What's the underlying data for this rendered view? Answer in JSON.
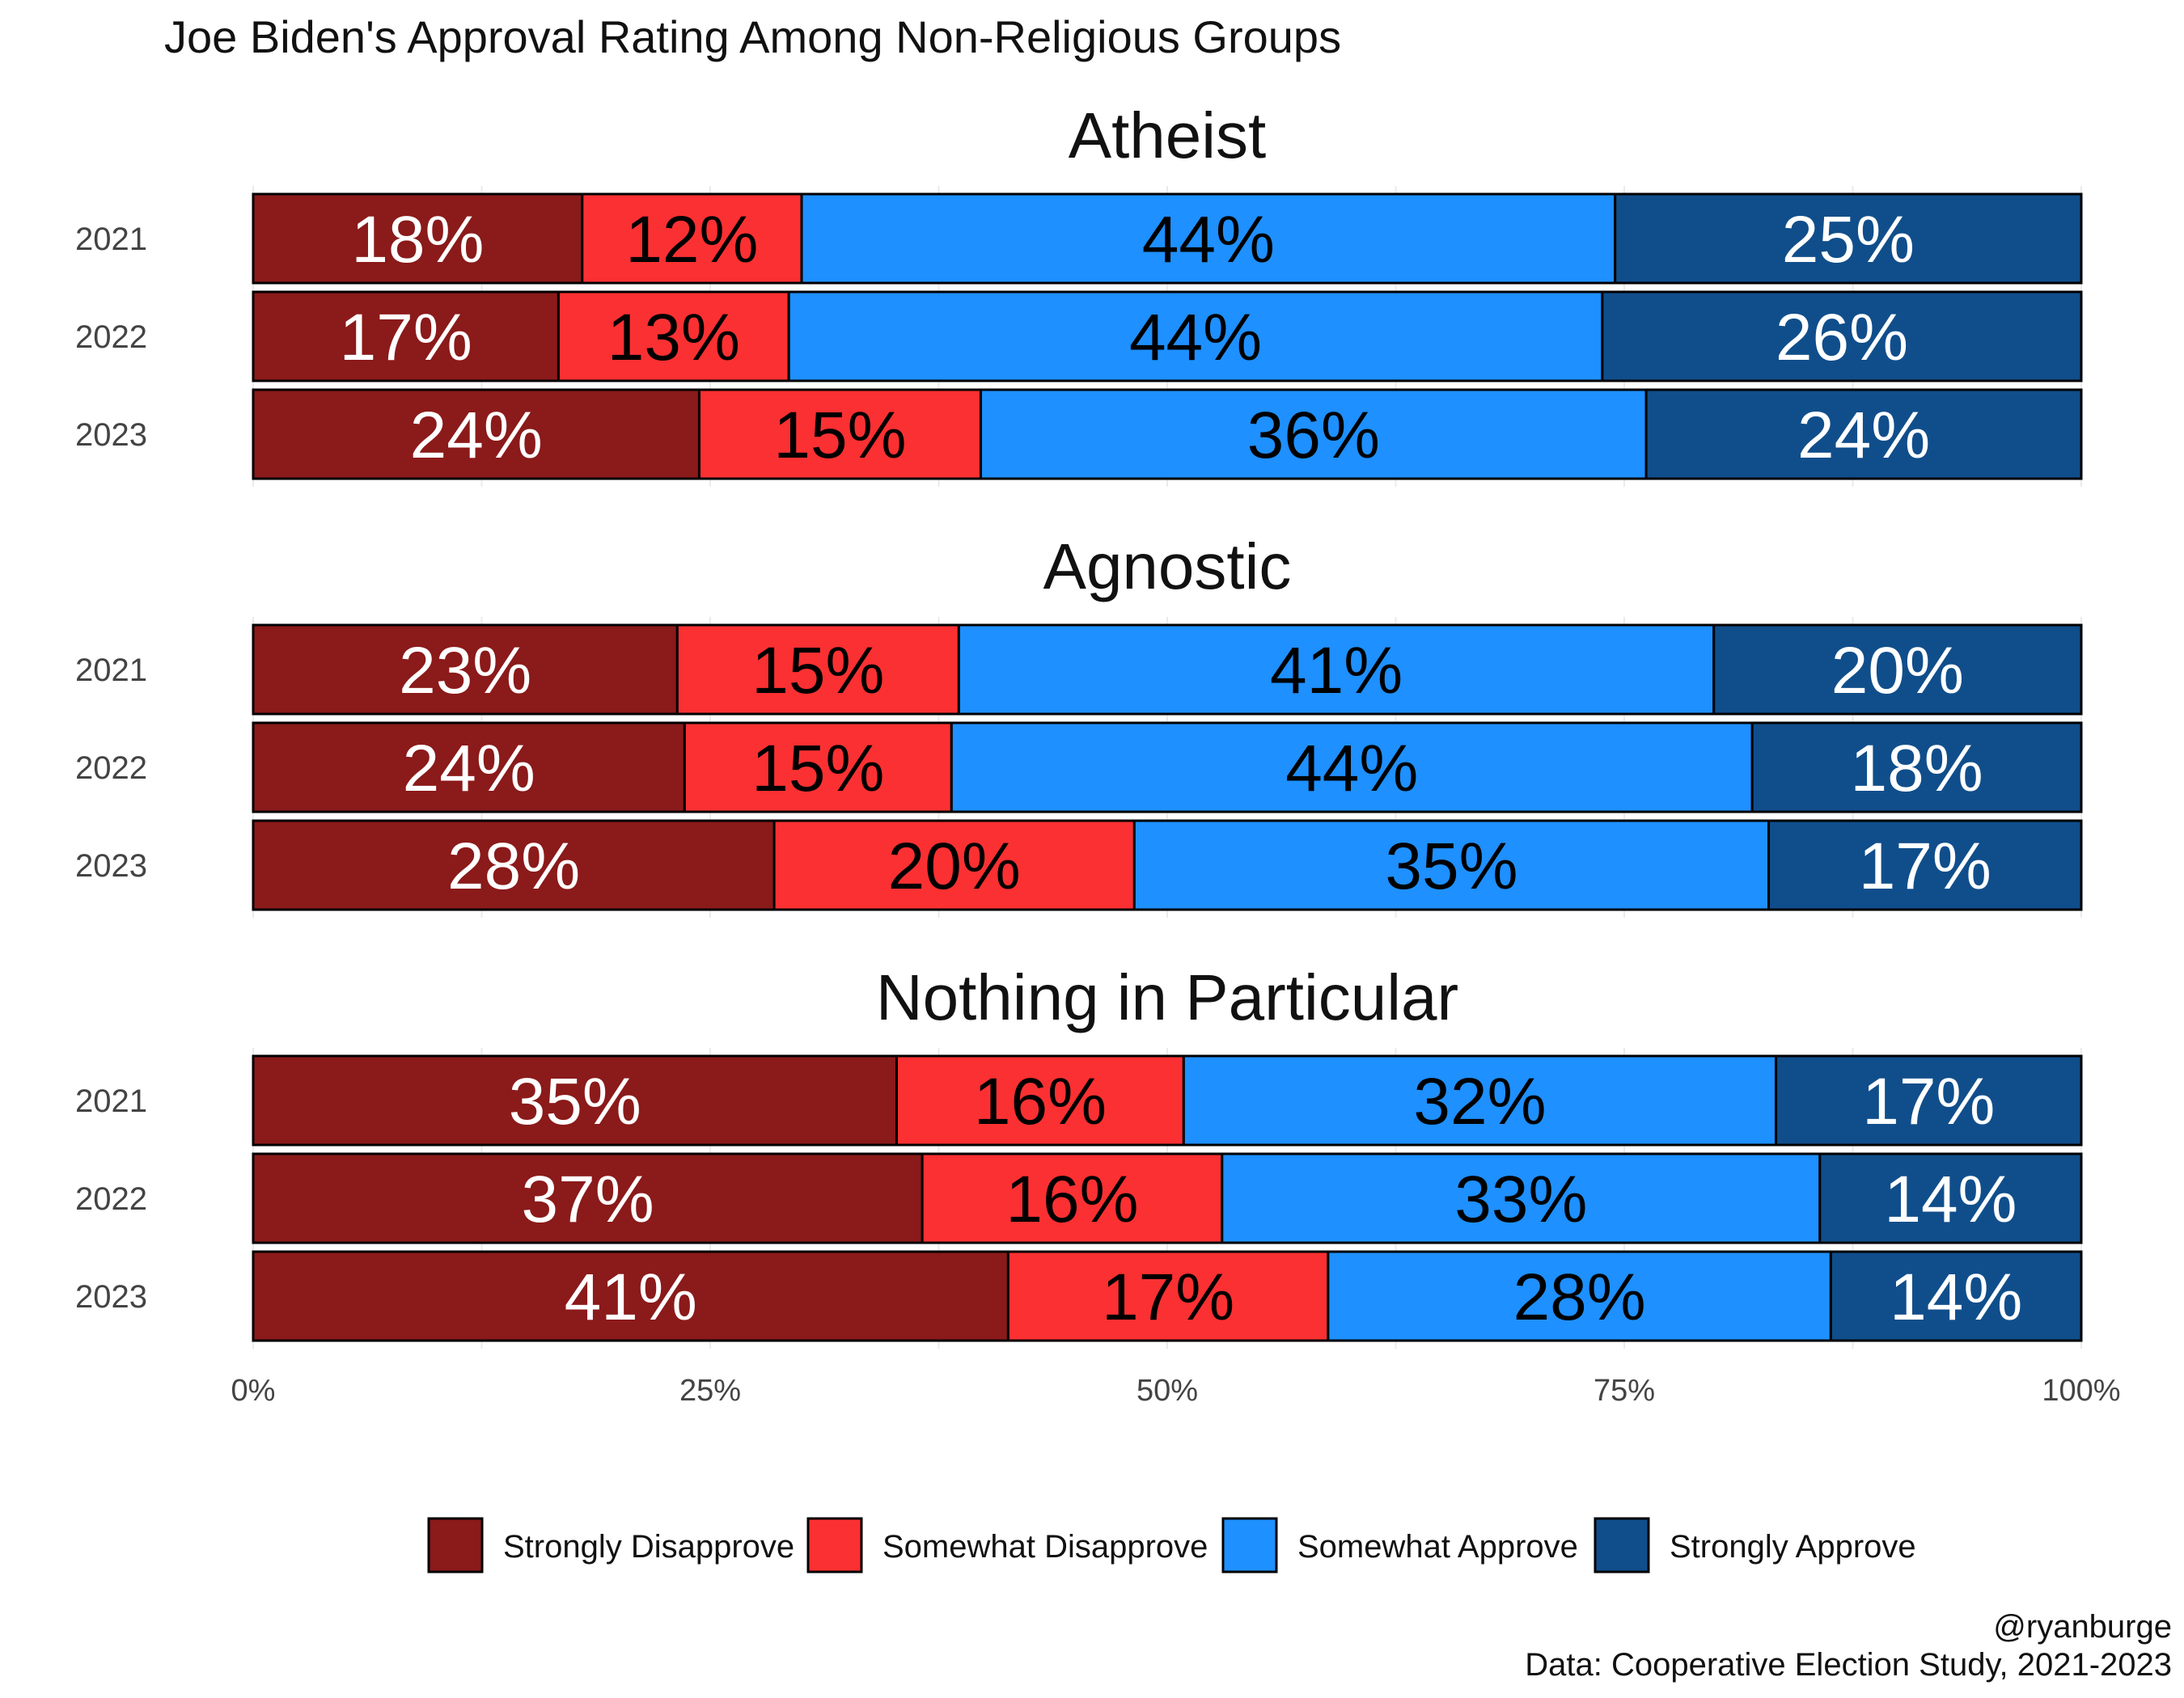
{
  "chart_data": {
    "type": "bar",
    "orientation": "horizontal",
    "stacked": true,
    "percent": true,
    "title": "Joe Biden's Approval Rating Among Non-Religious Groups",
    "caption_line1": "@ryanburge",
    "caption_line2": "Data: Cooperative Election Study, 2021-2023",
    "legend_position": "bottom",
    "xlim": [
      0,
      1
    ],
    "x_ticks": [
      "0%",
      "25%",
      "50%",
      "75%",
      "100%"
    ],
    "categories": [
      "Strongly Disapprove",
      "Somewhat Disapprove",
      "Somewhat Approve",
      "Strongly Approve"
    ],
    "colors": {
      "Strongly Disapprove": "#8b1a1a",
      "Somewhat Disapprove": "#fb3032",
      "Somewhat Approve": "#1e90ff",
      "Strongly Approve": "#104e8b"
    },
    "label_colors": {
      "Strongly Disapprove": "#ffffff",
      "Somewhat Disapprove": "#000000",
      "Somewhat Approve": "#000000",
      "Strongly Approve": "#ffffff"
    },
    "facets": [
      {
        "name": "Atheist",
        "rows": [
          {
            "year": "2021",
            "values": [
              0.18,
              0.12,
              0.445,
              0.255
            ],
            "labels": [
              "18%",
              "12%",
              "44%",
              "25%"
            ]
          },
          {
            "year": "2022",
            "values": [
              0.167,
              0.126,
              0.445,
              0.262
            ],
            "labels": [
              "17%",
              "13%",
              "44%",
              "26%"
            ]
          },
          {
            "year": "2023",
            "values": [
              0.244,
              0.154,
              0.364,
              0.238
            ],
            "labels": [
              "24%",
              "15%",
              "36%",
              "24%"
            ]
          }
        ]
      },
      {
        "name": "Agnostic",
        "rows": [
          {
            "year": "2021",
            "values": [
              0.232,
              0.154,
              0.413,
              0.201
            ],
            "labels": [
              "23%",
              "15%",
              "41%",
              "20%"
            ]
          },
          {
            "year": "2022",
            "values": [
              0.236,
              0.146,
              0.438,
              0.18
            ],
            "labels": [
              "24%",
              "15%",
              "44%",
              "18%"
            ]
          },
          {
            "year": "2023",
            "values": [
              0.285,
              0.197,
              0.347,
              0.171
            ],
            "labels": [
              "28%",
              "20%",
              "35%",
              "17%"
            ]
          }
        ]
      },
      {
        "name": "Nothing in Particular",
        "rows": [
          {
            "year": "2021",
            "values": [
              0.352,
              0.157,
              0.324,
              0.167
            ],
            "labels": [
              "35%",
              "16%",
              "32%",
              "17%"
            ]
          },
          {
            "year": "2022",
            "values": [
              0.366,
              0.164,
              0.327,
              0.143
            ],
            "labels": [
              "37%",
              "16%",
              "33%",
              "14%"
            ]
          },
          {
            "year": "2023",
            "values": [
              0.413,
              0.175,
              0.275,
              0.137
            ],
            "labels": [
              "41%",
              "17%",
              "28%",
              "14%"
            ]
          }
        ]
      }
    ]
  }
}
